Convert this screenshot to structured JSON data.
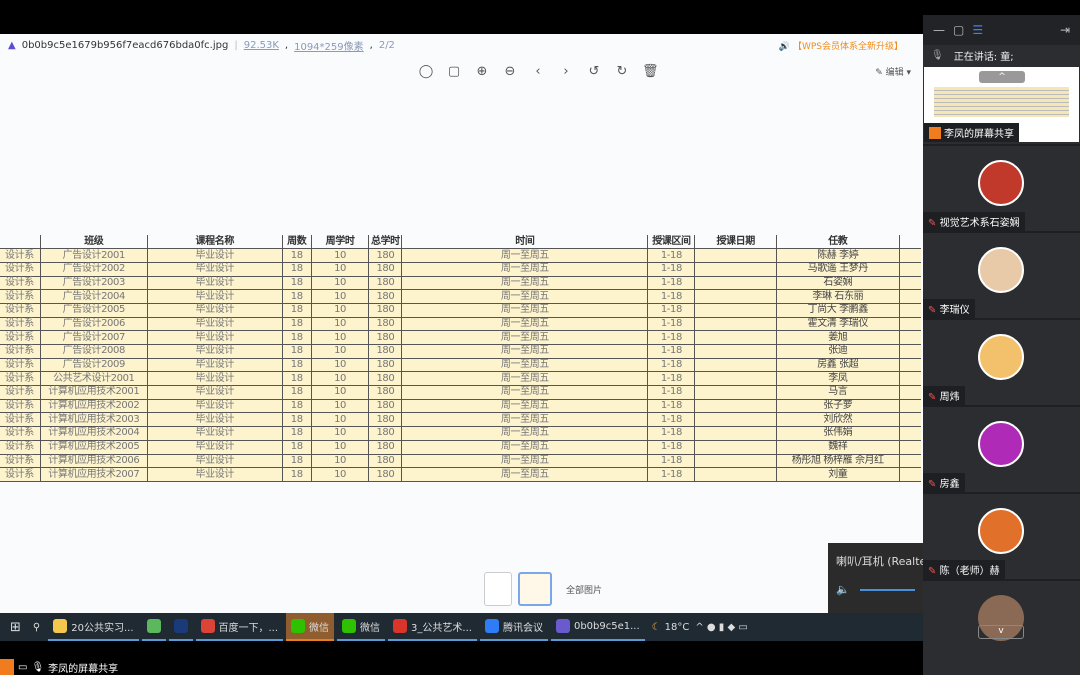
{
  "viewer": {
    "filename": "0b0b9c5e1679b956f7eacd676bda0fc.jpg",
    "filesize": "92.53K",
    "dimensions": "1094*259像素",
    "page": "2/2",
    "promo": "【WPS会员体系全新升级】",
    "edit_label": "编辑",
    "all_images_label": "全部图片",
    "toolbar": [
      "mouse-icon",
      "fit-screen-icon",
      "zoom-in-icon",
      "zoom-out-icon",
      "previous-icon",
      "next-icon",
      "rotate-left-icon",
      "rotate-right-icon",
      "delete-icon"
    ]
  },
  "table": {
    "headers": [
      "",
      "班级",
      "课程名称",
      "周数",
      "周学时",
      "总学时",
      "时间",
      "授课区间",
      "授课日期",
      "任教",
      ""
    ],
    "rows": [
      [
        "设计系",
        "广告设计2001",
        "毕业设计",
        "18",
        "10",
        "180",
        "周一至周五",
        "1-18",
        "",
        "陈赫 李婷"
      ],
      [
        "设计系",
        "广告设计2002",
        "毕业设计",
        "18",
        "10",
        "180",
        "周一至周五",
        "1-18",
        "",
        "马歌遥 王梦丹"
      ],
      [
        "设计系",
        "广告设计2003",
        "毕业设计",
        "18",
        "10",
        "180",
        "周一至周五",
        "1-18",
        "",
        "石姿娴"
      ],
      [
        "设计系",
        "广告设计2004",
        "毕业设计",
        "18",
        "10",
        "180",
        "周一至周五",
        "1-18",
        "",
        "李琳 石东丽"
      ],
      [
        "设计系",
        "广告设计2005",
        "毕业设计",
        "18",
        "10",
        "180",
        "周一至周五",
        "1-18",
        "",
        "丁尚大 李鹏鑫"
      ],
      [
        "设计系",
        "广告设计2006",
        "毕业设计",
        "18",
        "10",
        "180",
        "周一至周五",
        "1-18",
        "",
        "霍文清 李瑞仪"
      ],
      [
        "设计系",
        "广告设计2007",
        "毕业设计",
        "18",
        "10",
        "180",
        "周一至周五",
        "1-18",
        "",
        "姜旭"
      ],
      [
        "设计系",
        "广告设计2008",
        "毕业设计",
        "18",
        "10",
        "180",
        "周一至周五",
        "1-18",
        "",
        "张迪"
      ],
      [
        "设计系",
        "广告设计2009",
        "毕业设计",
        "18",
        "10",
        "180",
        "周一至周五",
        "1-18",
        "",
        "房鑫 张超"
      ],
      [
        "设计系",
        "公共艺术设计2001",
        "毕业设计",
        "18",
        "10",
        "180",
        "周一至周五",
        "1-18",
        "",
        "李凤"
      ],
      [
        "设计系",
        "计算机应用技术2001",
        "毕业设计",
        "18",
        "10",
        "180",
        "周一至周五",
        "1-18",
        "",
        "马言"
      ],
      [
        "设计系",
        "计算机应用技术2002",
        "毕业设计",
        "18",
        "10",
        "180",
        "周一至周五",
        "1-18",
        "",
        "张子萝"
      ],
      [
        "设计系",
        "计算机应用技术2003",
        "毕业设计",
        "18",
        "10",
        "180",
        "周一至周五",
        "1-18",
        "",
        "刘欣然"
      ],
      [
        "设计系",
        "计算机应用技术2004",
        "毕业设计",
        "18",
        "10",
        "180",
        "周一至周五",
        "1-18",
        "",
        "张伟娟"
      ],
      [
        "设计系",
        "计算机应用技术2005",
        "毕业设计",
        "18",
        "10",
        "180",
        "周一至周五",
        "1-18",
        "",
        "魏祥"
      ],
      [
        "设计系",
        "计算机应用技术2006",
        "毕业设计",
        "18",
        "10",
        "180",
        "周一至周五",
        "1-18",
        "",
        "杨彤旭 杨梓雁 佘月红"
      ],
      [
        "设计系",
        "计算机应用技术2007",
        "毕业设计",
        "18",
        "10",
        "180",
        "周一至周五",
        "1-18",
        "",
        "刘童"
      ]
    ]
  },
  "volume": {
    "device": "喇叭/耳机 (Realtek"
  },
  "taskbar": {
    "items": [
      {
        "label": "20公共实习...",
        "icon": "folder-icon"
      },
      {
        "label": "",
        "icon": "ie-icon"
      },
      {
        "label": "",
        "icon": "photoshop-icon"
      },
      {
        "label": "百度一下，...",
        "icon": "chrome-icon"
      },
      {
        "label": "微信",
        "icon": "wechat-icon",
        "active": true
      },
      {
        "label": "微信",
        "icon": "wechat-icon"
      },
      {
        "label": "3_公共艺术...",
        "icon": "wps-icon"
      },
      {
        "label": "腾讯会议",
        "icon": "tencent-meeting-icon"
      },
      {
        "label": "0b0b9c5e1...",
        "icon": "image-viewer-icon"
      }
    ],
    "weather": "18°C"
  },
  "share_label": "李凤的屏幕共享",
  "panel": {
    "speaking": "正在讲话: 童;",
    "share_label": "李凤的屏幕共享",
    "participants": [
      {
        "name": "视觉艺术系石姿娴",
        "color": "#c0392b"
      },
      {
        "name": "李瑞仪",
        "color": "#e8c9a8"
      },
      {
        "name": "周炜",
        "color": "#f3c06b"
      },
      {
        "name": "房鑫",
        "color": "#b02ab8"
      },
      {
        "name": "陈（老师）赫",
        "color": "#e0702a"
      }
    ]
  }
}
